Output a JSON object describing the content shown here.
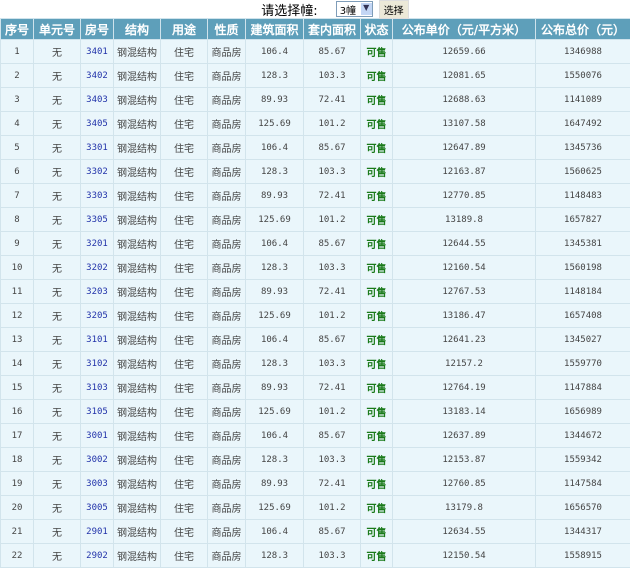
{
  "selector": {
    "label": "请选择幢:",
    "selected": "3幢",
    "button": "选择"
  },
  "columns": [
    "序号",
    "单元号",
    "房号",
    "结构",
    "用途",
    "性质",
    "建筑面积",
    "套内面积",
    "状态",
    "公布单价（元/平方米）",
    "公布总价（元）"
  ],
  "rows": [
    [
      "1",
      "无",
      "3401",
      "钢混结构",
      "住宅",
      "商品房",
      "106.4",
      "85.67",
      "可售",
      "12659.66",
      "1346988"
    ],
    [
      "2",
      "无",
      "3402",
      "钢混结构",
      "住宅",
      "商品房",
      "128.3",
      "103.3",
      "可售",
      "12081.65",
      "1550076"
    ],
    [
      "3",
      "无",
      "3403",
      "钢混结构",
      "住宅",
      "商品房",
      "89.93",
      "72.41",
      "可售",
      "12688.63",
      "1141089"
    ],
    [
      "4",
      "无",
      "3405",
      "钢混结构",
      "住宅",
      "商品房",
      "125.69",
      "101.2",
      "可售",
      "13107.58",
      "1647492"
    ],
    [
      "5",
      "无",
      "3301",
      "钢混结构",
      "住宅",
      "商品房",
      "106.4",
      "85.67",
      "可售",
      "12647.89",
      "1345736"
    ],
    [
      "6",
      "无",
      "3302",
      "钢混结构",
      "住宅",
      "商品房",
      "128.3",
      "103.3",
      "可售",
      "12163.87",
      "1560625"
    ],
    [
      "7",
      "无",
      "3303",
      "钢混结构",
      "住宅",
      "商品房",
      "89.93",
      "72.41",
      "可售",
      "12770.85",
      "1148483"
    ],
    [
      "8",
      "无",
      "3305",
      "钢混结构",
      "住宅",
      "商品房",
      "125.69",
      "101.2",
      "可售",
      "13189.8",
      "1657827"
    ],
    [
      "9",
      "无",
      "3201",
      "钢混结构",
      "住宅",
      "商品房",
      "106.4",
      "85.67",
      "可售",
      "12644.55",
      "1345381"
    ],
    [
      "10",
      "无",
      "3202",
      "钢混结构",
      "住宅",
      "商品房",
      "128.3",
      "103.3",
      "可售",
      "12160.54",
      "1560198"
    ],
    [
      "11",
      "无",
      "3203",
      "钢混结构",
      "住宅",
      "商品房",
      "89.93",
      "72.41",
      "可售",
      "12767.53",
      "1148184"
    ],
    [
      "12",
      "无",
      "3205",
      "钢混结构",
      "住宅",
      "商品房",
      "125.69",
      "101.2",
      "可售",
      "13186.47",
      "1657408"
    ],
    [
      "13",
      "无",
      "3101",
      "钢混结构",
      "住宅",
      "商品房",
      "106.4",
      "85.67",
      "可售",
      "12641.23",
      "1345027"
    ],
    [
      "14",
      "无",
      "3102",
      "钢混结构",
      "住宅",
      "商品房",
      "128.3",
      "103.3",
      "可售",
      "12157.2",
      "1559770"
    ],
    [
      "15",
      "无",
      "3103",
      "钢混结构",
      "住宅",
      "商品房",
      "89.93",
      "72.41",
      "可售",
      "12764.19",
      "1147884"
    ],
    [
      "16",
      "无",
      "3105",
      "钢混结构",
      "住宅",
      "商品房",
      "125.69",
      "101.2",
      "可售",
      "13183.14",
      "1656989"
    ],
    [
      "17",
      "无",
      "3001",
      "钢混结构",
      "住宅",
      "商品房",
      "106.4",
      "85.67",
      "可售",
      "12637.89",
      "1344672"
    ],
    [
      "18",
      "无",
      "3002",
      "钢混结构",
      "住宅",
      "商品房",
      "128.3",
      "103.3",
      "可售",
      "12153.87",
      "1559342"
    ],
    [
      "19",
      "无",
      "3003",
      "钢混结构",
      "住宅",
      "商品房",
      "89.93",
      "72.41",
      "可售",
      "12760.85",
      "1147584"
    ],
    [
      "20",
      "无",
      "3005",
      "钢混结构",
      "住宅",
      "商品房",
      "125.69",
      "101.2",
      "可售",
      "13179.8",
      "1656570"
    ],
    [
      "21",
      "无",
      "2901",
      "钢混结构",
      "住宅",
      "商品房",
      "106.4",
      "85.67",
      "可售",
      "12634.55",
      "1344317"
    ],
    [
      "22",
      "无",
      "2902",
      "钢混结构",
      "住宅",
      "商品房",
      "128.3",
      "103.3",
      "可售",
      "12150.54",
      "1558915"
    ]
  ]
}
